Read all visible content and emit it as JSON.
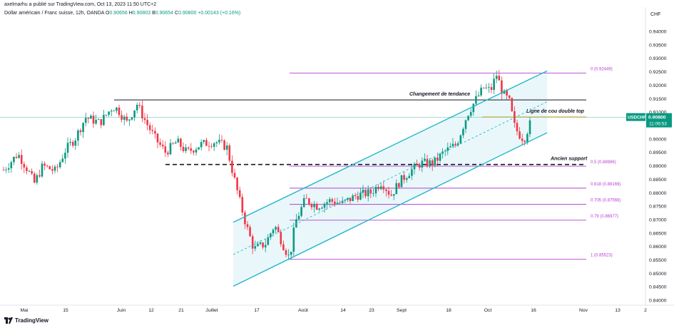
{
  "header": {
    "published": "axelmarhu a publié sur TradingView.com, Oct 13, 2023 11:50 UTC+2",
    "title": "Dollar américain / Franc suisse, 12h, OANDA",
    "ohlc": [
      {
        "k": "O",
        "v": "0.90656"
      },
      {
        "k": "H",
        "v": "0.90803"
      },
      {
        "k": "B",
        "v": "0.90654"
      },
      {
        "k": "C",
        "v": "0.90800"
      }
    ],
    "change": "+0.00143 (+0.16%)",
    "currency": "CHF"
  },
  "footer": {
    "brand": "TradingView"
  },
  "colors": {
    "up": "#089981",
    "down": "#f23645",
    "channel": "#22b7c9",
    "channel_fill": "#dff4f9",
    "fib": "#b53fd1",
    "horizontal": "#131722",
    "neckline": "#f2b134",
    "price_tag": "#089981"
  },
  "chart_data": {
    "type": "candlestick",
    "symbol": "USDCHF",
    "interval": "12h",
    "y_ticks": [
      "0.94000",
      "0.93500",
      "0.93000",
      "0.92500",
      "0.92000",
      "0.91500",
      "0.91000",
      "0.90500",
      "0.90000",
      "0.89500",
      "0.89000",
      "0.88500",
      "0.88000",
      "0.87500",
      "0.87000",
      "0.86500",
      "0.86000",
      "0.85500",
      "0.85000",
      "0.84500",
      "0.84000"
    ],
    "ylim": [
      0.8385,
      0.9425
    ],
    "x_ticks": [
      "Mai",
      "15",
      "Juin",
      "12",
      "21",
      "Juillet",
      "17",
      "Août",
      "14",
      "23",
      "Sept",
      "18",
      "Oct",
      "16",
      "Nov",
      "13",
      "2"
    ],
    "price_tag": {
      "label": "USDCHF",
      "price": "0.90800",
      "countdown": "11:09:53"
    },
    "close_path": [
      [
        0,
        0.887
      ],
      [
        12,
        0.8905
      ],
      [
        25,
        0.8945
      ],
      [
        40,
        0.888
      ],
      [
        48,
        0.8835
      ],
      [
        60,
        0.89
      ],
      [
        78,
        0.888
      ],
      [
        92,
        0.896
      ],
      [
        105,
        0.9
      ],
      [
        120,
        0.908
      ],
      [
        140,
        0.906
      ],
      [
        158,
        0.912
      ],
      [
        165,
        0.911
      ],
      [
        178,
        0.906
      ],
      [
        192,
        0.913
      ],
      [
        205,
        0.906
      ],
      [
        218,
        0.9
      ],
      [
        232,
        0.895
      ],
      [
        248,
        0.899
      ],
      [
        262,
        0.895
      ],
      [
        282,
        0.898
      ],
      [
        302,
        0.899
      ],
      [
        318,
        0.897
      ],
      [
        325,
        0.889
      ],
      [
        335,
        0.878
      ],
      [
        345,
        0.868
      ],
      [
        356,
        0.859
      ],
      [
        372,
        0.861
      ],
      [
        385,
        0.868
      ],
      [
        398,
        0.86
      ],
      [
        406,
        0.8555
      ],
      [
        414,
        0.869
      ],
      [
        428,
        0.8775
      ],
      [
        445,
        0.875
      ],
      [
        462,
        0.877
      ],
      [
        480,
        0.876
      ],
      [
        500,
        0.879
      ],
      [
        520,
        0.88
      ],
      [
        535,
        0.884
      ],
      [
        548,
        0.879
      ],
      [
        560,
        0.884
      ],
      [
        575,
        0.888
      ],
      [
        590,
        0.891
      ],
      [
        608,
        0.891
      ],
      [
        622,
        0.895
      ],
      [
        640,
        0.898
      ],
      [
        655,
        0.909
      ],
      [
        668,
        0.915
      ],
      [
        678,
        0.919
      ],
      [
        688,
        0.918
      ],
      [
        696,
        0.924
      ],
      [
        705,
        0.917
      ],
      [
        714,
        0.914
      ],
      [
        722,
        0.904
      ],
      [
        730,
        0.901
      ],
      [
        735,
        0.9
      ],
      [
        742,
        0.905
      ],
      [
        748,
        0.908
      ]
    ],
    "annotations": [
      {
        "text": "Changement de tendance",
        "price": 0.9145,
        "x0": 160,
        "x1": 822
      },
      {
        "text": "Ligne de cou double top",
        "price": 0.9082,
        "x0": 676,
        "x1": 822
      },
      {
        "text": "Ancien support",
        "price": 0.8905,
        "x0": 232,
        "x1": 822
      }
    ],
    "fib_levels": [
      {
        "label": "0 (0.92449)",
        "price": 0.92449
      },
      {
        "label": "0.5 (0.88986)",
        "price": 0.88986
      },
      {
        "label": "0.618 (0.88169)",
        "price": 0.88169
      },
      {
        "label": "0.705 (0.87566)",
        "price": 0.87566
      },
      {
        "label": "0.79 (0.86977)",
        "price": 0.86977
      },
      {
        "label": "1 (0.85523)",
        "price": 0.85523
      }
    ],
    "fib_x": [
      406,
      822
    ],
    "channel": {
      "upper": [
        [
          327,
          0.869
        ],
        [
          767,
          0.9253
        ]
      ],
      "lower": [
        [
          327,
          0.8452
        ],
        [
          767,
          0.9023
        ]
      ],
      "mid": [
        [
          327,
          0.857
        ],
        [
          767,
          0.9138
        ]
      ]
    },
    "grid": false
  }
}
